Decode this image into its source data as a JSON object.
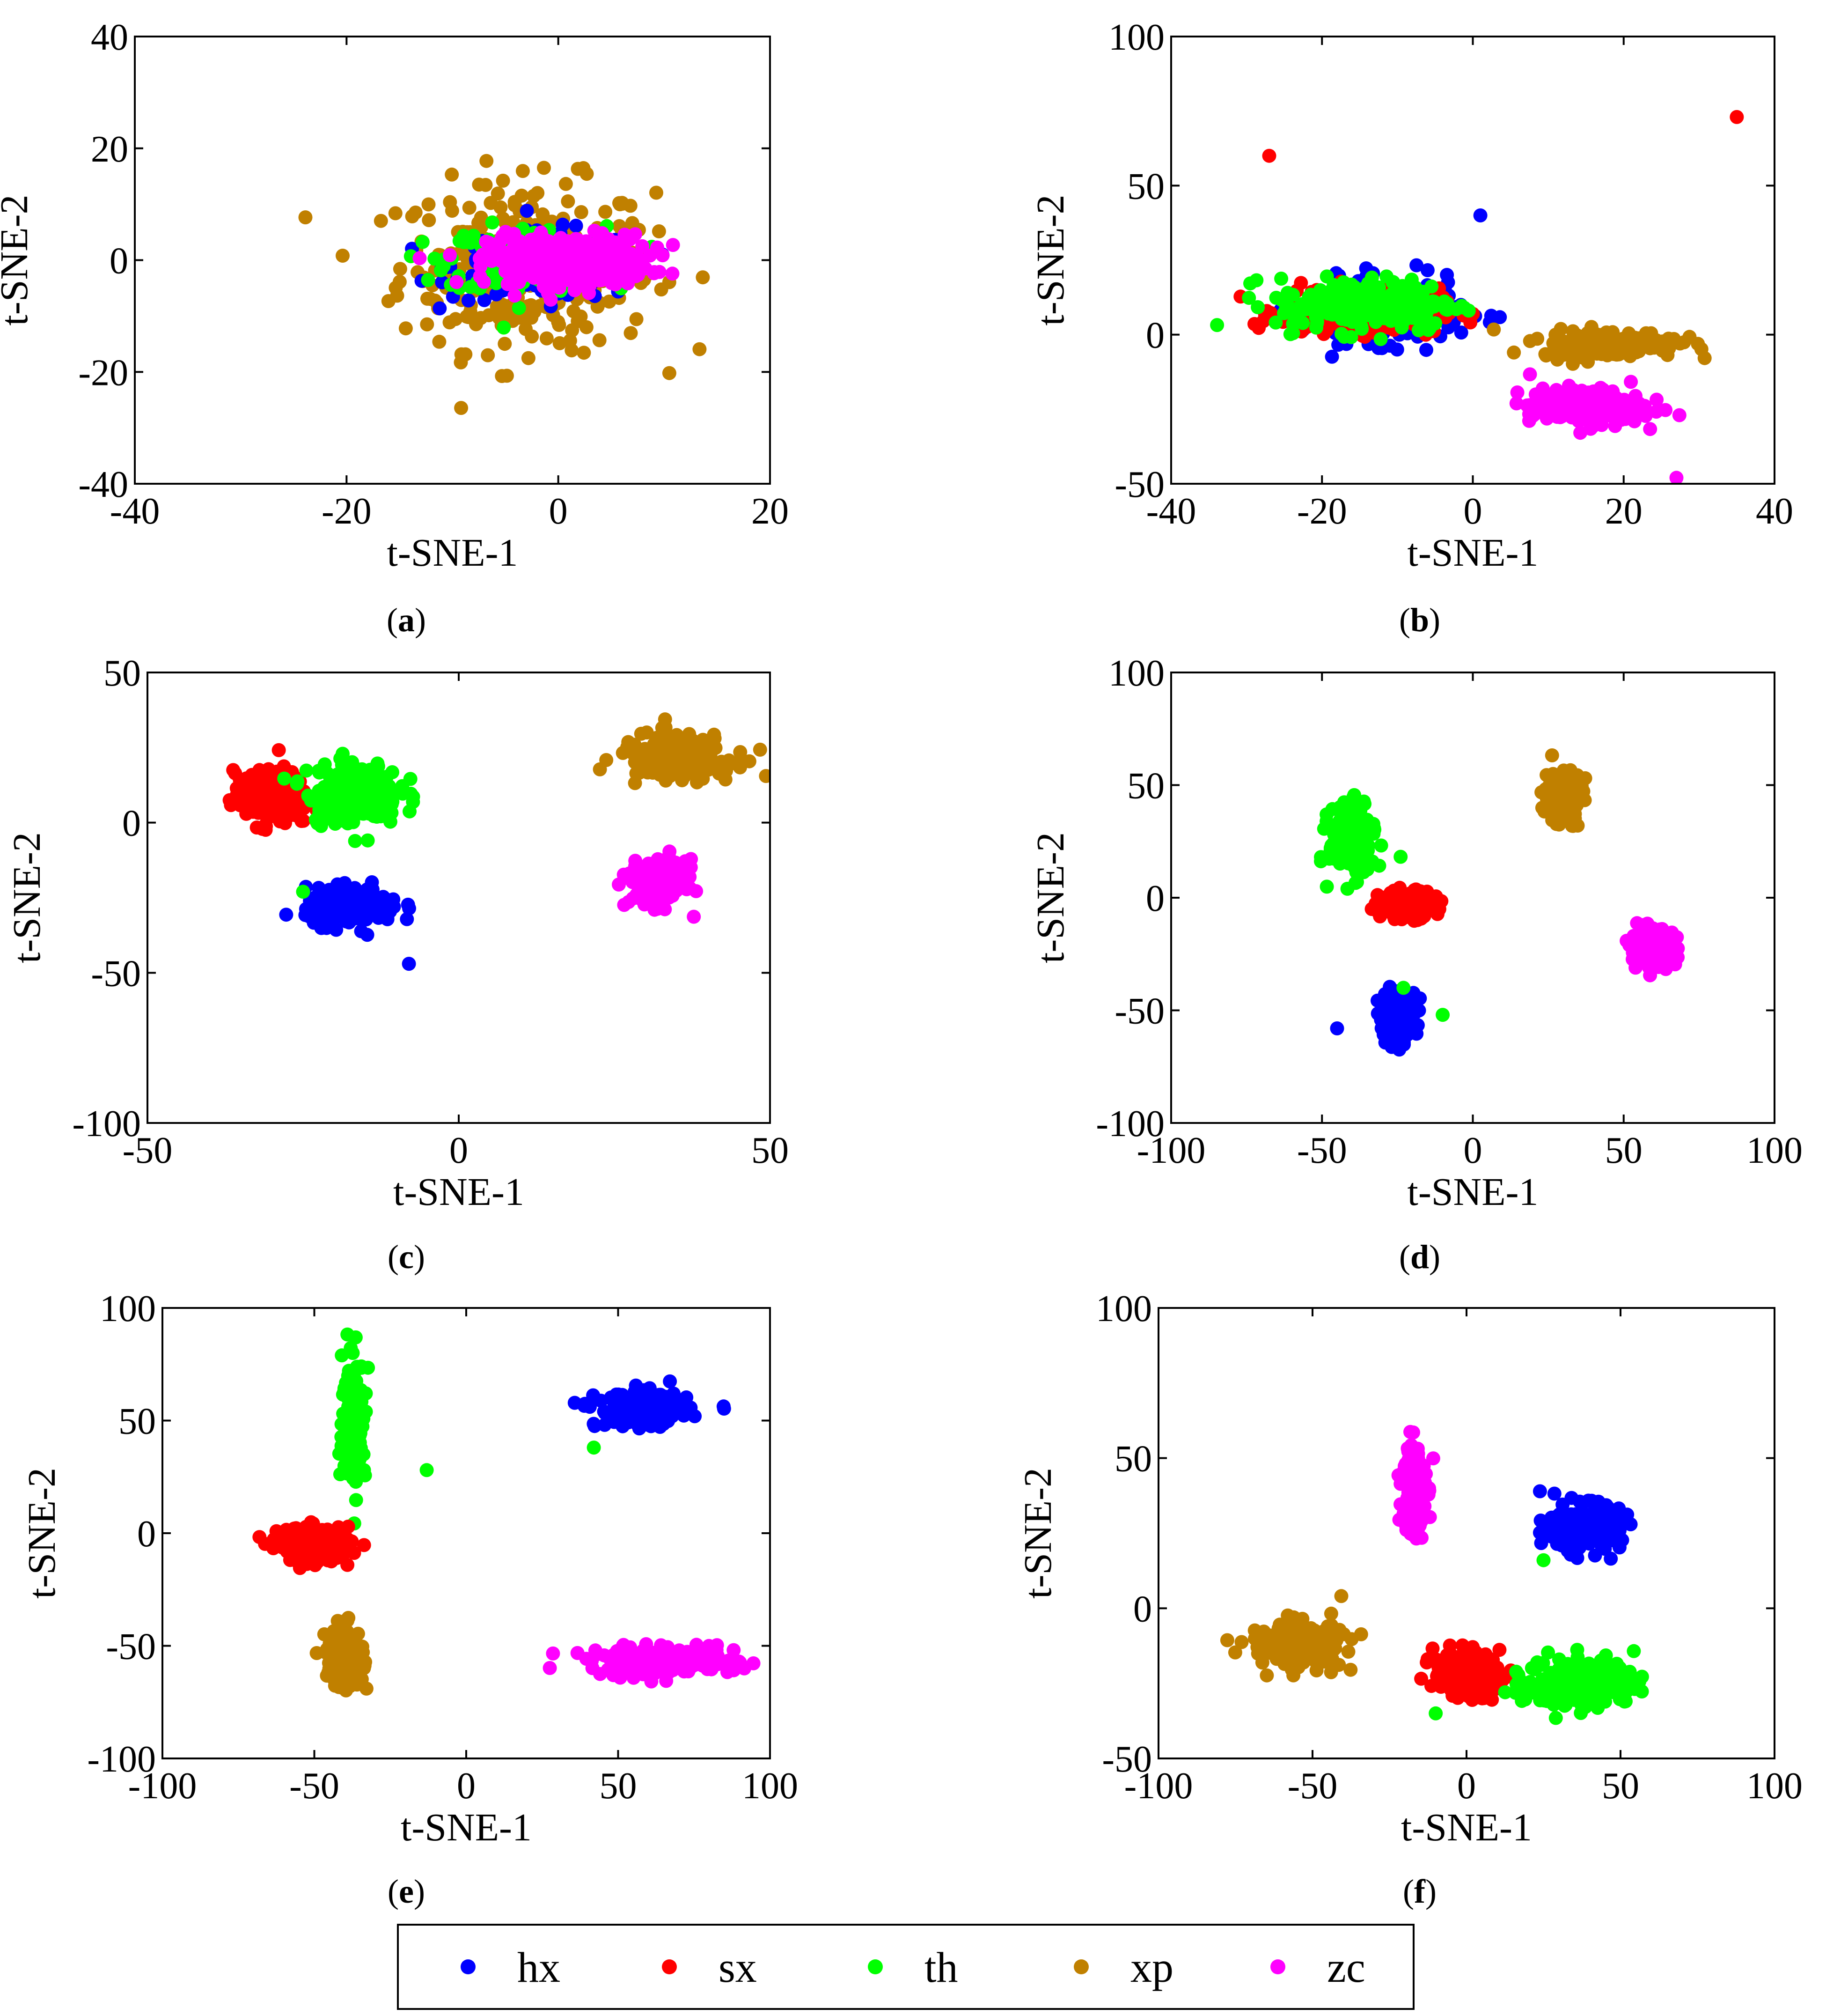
{
  "colors": {
    "hx": "#0000ff",
    "sx": "#ff0000",
    "th": "#00ff00",
    "xp": "#c08000",
    "zc": "#ff00ff"
  },
  "legend": {
    "entries": [
      {
        "key": "hx",
        "label": "hx"
      },
      {
        "key": "sx",
        "label": "sx"
      },
      {
        "key": "th",
        "label": "th"
      },
      {
        "key": "xp",
        "label": "xp"
      },
      {
        "key": "zc",
        "label": "zc"
      }
    ]
  },
  "chart_data": [
    {
      "type": "scatter",
      "caption_letter": "a",
      "caption_pre": "(",
      "caption_post": ")",
      "xlabel": "t-SNE-1",
      "ylabel": "t-SNE-2",
      "xlim": [
        -40,
        20
      ],
      "ylim": [
        -40,
        40
      ],
      "xticks": [
        "-40",
        "-20",
        "0",
        "20"
      ],
      "yticks": [
        "-40",
        "-20",
        "0",
        "20",
        "40"
      ],
      "clusters": [
        {
          "label": "xp",
          "cx": -3,
          "cy": -1,
          "sx": 8,
          "sy": 10,
          "n": 320
        },
        {
          "label": "hx",
          "cx": -1,
          "cy": -1,
          "sx": 6,
          "sy": 4,
          "n": 200
        },
        {
          "label": "th",
          "cx": -3,
          "cy": 0,
          "sx": 5,
          "sy": 4,
          "n": 200
        },
        {
          "label": "zc",
          "cx": 1,
          "cy": 0,
          "sx": 5,
          "sy": 3,
          "n": 380
        }
      ]
    },
    {
      "type": "scatter",
      "caption_letter": "b",
      "caption_pre": "(",
      "caption_post": ")",
      "xlabel": "t-SNE-1",
      "ylabel": "t-SNE-2",
      "xlim": [
        -40,
        40
      ],
      "ylim": [
        -50,
        100
      ],
      "xticks": [
        "-40",
        "-20",
        "0",
        "20",
        "40"
      ],
      "yticks": [
        "-50",
        "0",
        "50",
        "100"
      ],
      "clusters": [
        {
          "label": "hx",
          "cx": -12,
          "cy": 8,
          "sx": 7,
          "sy": 7,
          "n": 230
        },
        {
          "label": "sx",
          "cx": -15,
          "cy": 8,
          "sx": 7,
          "sy": 5,
          "n": 230
        },
        {
          "label": "th",
          "cx": -14,
          "cy": 10,
          "sx": 8,
          "sy": 6,
          "n": 220
        },
        {
          "label": "xp",
          "cx": 18,
          "cy": -3,
          "sx": 6,
          "sy": 3,
          "n": 200
        },
        {
          "label": "zc",
          "cx": 15,
          "cy": -24,
          "sx": 5,
          "sy": 4,
          "n": 240
        }
      ],
      "outliers": [
        {
          "label": "sx",
          "x": -27,
          "y": 60
        },
        {
          "label": "sx",
          "x": 35,
          "y": 73
        },
        {
          "label": "hx",
          "x": 1,
          "y": 40
        },
        {
          "label": "zc",
          "x": 27,
          "y": -48
        }
      ]
    },
    {
      "type": "scatter",
      "caption_letter": "c",
      "caption_pre": "(",
      "caption_post": ")",
      "xlabel": "t-SNE-1",
      "ylabel": "t-SNE-2",
      "xlim": [
        -50,
        50
      ],
      "ylim": [
        -100,
        50
      ],
      "xticks": [
        "-50",
        "0",
        "50"
      ],
      "yticks": [
        "-100",
        "-50",
        "0",
        "50"
      ],
      "clusters": [
        {
          "label": "sx",
          "cx": -30,
          "cy": 8,
          "sx": 4,
          "sy": 6,
          "n": 220
        },
        {
          "label": "th",
          "cx": -17,
          "cy": 10,
          "sx": 5,
          "sy": 7,
          "n": 200
        },
        {
          "label": "hx",
          "cx": -17,
          "cy": -28,
          "sx": 5,
          "sy": 4,
          "n": 210
        },
        {
          "label": "xp",
          "cx": 35,
          "cy": 22,
          "sx": 6,
          "sy": 5,
          "n": 200
        },
        {
          "label": "zc",
          "cx": 32,
          "cy": -20,
          "sx": 3,
          "sy": 5,
          "n": 210
        }
      ],
      "outliers": [
        {
          "label": "hx",
          "x": -8,
          "y": -47
        },
        {
          "label": "th",
          "x": -25,
          "y": -23
        }
      ]
    },
    {
      "type": "scatter",
      "caption_letter": "d",
      "caption_pre": "(",
      "caption_post": ")",
      "xlabel": "t-SNE-1",
      "ylabel": "t-SNE-2",
      "xlim": [
        -100,
        100
      ],
      "ylim": [
        -100,
        100
      ],
      "xticks": [
        "-100",
        "-50",
        "0",
        "50",
        "100"
      ],
      "yticks": [
        "-100",
        "-50",
        "0",
        "50",
        "100"
      ],
      "clusters": [
        {
          "label": "th",
          "cx": -40,
          "cy": 25,
          "sx": 5,
          "sy": 10,
          "n": 210
        },
        {
          "label": "sx",
          "cx": -22,
          "cy": -3,
          "sx": 6,
          "sy": 4,
          "n": 210
        },
        {
          "label": "hx",
          "cx": -25,
          "cy": -52,
          "sx": 4,
          "sy": 7,
          "n": 200
        },
        {
          "label": "xp",
          "cx": 30,
          "cy": 45,
          "sx": 4,
          "sy": 8,
          "n": 200
        },
        {
          "label": "zc",
          "cx": 60,
          "cy": -22,
          "sx": 5,
          "sy": 5,
          "n": 210
        }
      ],
      "outliers": [
        {
          "label": "hx",
          "x": -45,
          "y": -58
        },
        {
          "label": "th",
          "x": -23,
          "y": -40
        },
        {
          "label": "th",
          "x": -10,
          "y": -52
        }
      ]
    },
    {
      "type": "scatter",
      "caption_letter": "e",
      "caption_pre": "(",
      "caption_post": ")",
      "xlabel": "t-SNE-1",
      "ylabel": "t-SNE-2",
      "xlim": [
        -100,
        100
      ],
      "ylim": [
        -100,
        100
      ],
      "xticks": [
        "-100",
        "-50",
        "0",
        "50",
        "100"
      ],
      "yticks": [
        "-100",
        "-50",
        "0",
        "50",
        "100"
      ],
      "clusters": [
        {
          "label": "th",
          "cx": -37,
          "cy": 50,
          "sx": 2.5,
          "sy": 18,
          "n": 200
        },
        {
          "label": "sx",
          "cx": -50,
          "cy": -5,
          "sx": 8,
          "sy": 5,
          "n": 230
        },
        {
          "label": "hx",
          "cx": 58,
          "cy": 55,
          "sx": 10,
          "sy": 5,
          "n": 210
        },
        {
          "label": "xp",
          "cx": -40,
          "cy": -55,
          "sx": 4,
          "sy": 9,
          "n": 200
        },
        {
          "label": "zc",
          "cx": 65,
          "cy": -57,
          "sx": 16,
          "sy": 4,
          "n": 230
        }
      ],
      "outliers": [
        {
          "label": "th",
          "x": -13,
          "y": 28
        },
        {
          "label": "th",
          "x": 42,
          "y": 38
        }
      ]
    },
    {
      "type": "scatter",
      "caption_letter": "f",
      "caption_pre": "(",
      "caption_post": ")",
      "xlabel": "t-SNE-1",
      "ylabel": "t-SNE-2",
      "xlim": [
        -100,
        100
      ],
      "ylim": [
        -50,
        100
      ],
      "xticks": [
        "-100",
        "-50",
        "0",
        "50",
        "100"
      ],
      "yticks": [
        "-50",
        "0",
        "50",
        "100"
      ],
      "clusters": [
        {
          "label": "zc",
          "cx": -17,
          "cy": 40,
          "sx": 2.5,
          "sy": 11,
          "n": 200
        },
        {
          "label": "hx",
          "cx": 38,
          "cy": 27,
          "sx": 8,
          "sy": 5,
          "n": 210
        },
        {
          "label": "xp",
          "cx": -55,
          "cy": -12,
          "sx": 10,
          "sy": 5,
          "n": 200
        },
        {
          "label": "sx",
          "cx": 0,
          "cy": -22,
          "sx": 7,
          "sy": 5,
          "n": 230
        },
        {
          "label": "th",
          "cx": 37,
          "cy": -25,
          "sx": 12,
          "sy": 6,
          "n": 200
        }
      ],
      "outliers": [
        {
          "label": "th",
          "x": 25,
          "y": 16
        },
        {
          "label": "th",
          "x": -10,
          "y": -35
        }
      ]
    }
  ]
}
